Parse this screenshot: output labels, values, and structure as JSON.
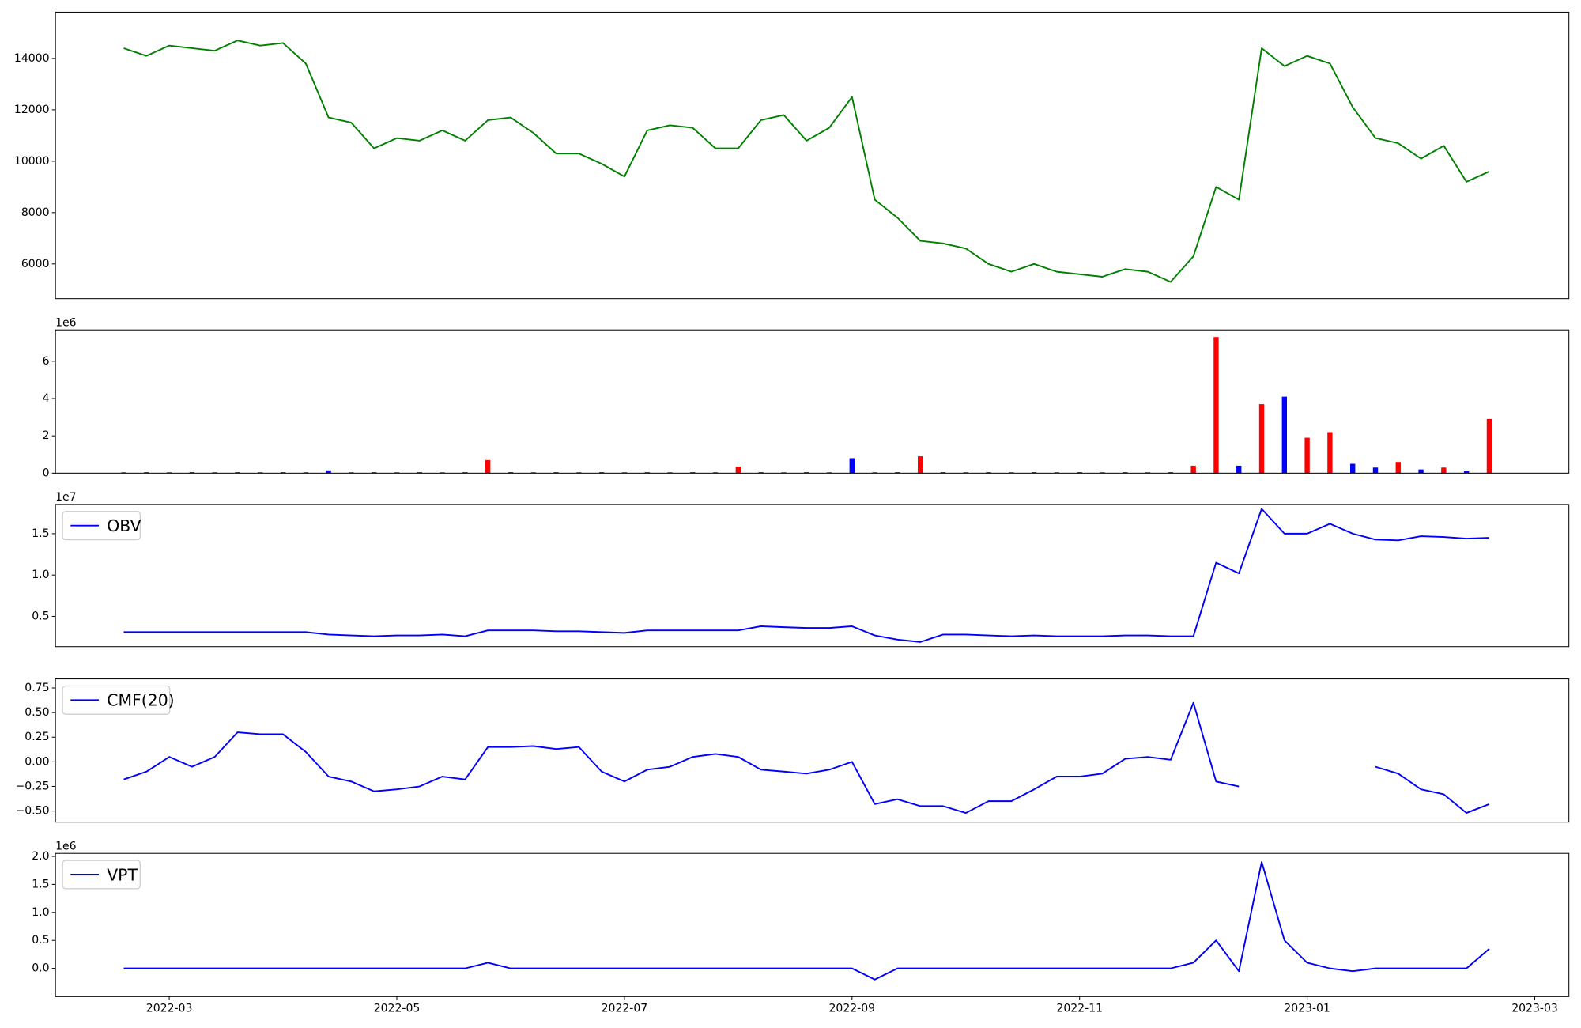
{
  "chart_data": [
    {
      "type": "line",
      "color": "green",
      "x": [
        2.6,
        2.8,
        3.0,
        3.2,
        3.4,
        3.6,
        3.8,
        4.0,
        4.2,
        4.4,
        4.6,
        4.8,
        5.0,
        5.2,
        5.4,
        5.6,
        5.8,
        6.0,
        6.2,
        6.4,
        6.6,
        6.8,
        7.0,
        7.2,
        7.4,
        7.6,
        7.8,
        8.0,
        8.2,
        8.4,
        8.6,
        8.8,
        9.0,
        9.2,
        9.4,
        9.6,
        9.8,
        10.0,
        10.2,
        10.4,
        10.6,
        10.8,
        11.0,
        11.2,
        11.4,
        11.6,
        11.8,
        12.0,
        12.2,
        12.4,
        12.6,
        12.8,
        13.0,
        13.2,
        13.4,
        13.6,
        13.8,
        14.0,
        14.2,
        14.4,
        14.6
      ],
      "values": [
        14400,
        14100,
        14500,
        14400,
        14300,
        14700,
        14500,
        14600,
        13800,
        11700,
        11500,
        10500,
        10900,
        10800,
        11200,
        10800,
        11600,
        11700,
        11100,
        10300,
        10300,
        9900,
        9400,
        11200,
        11400,
        11300,
        10500,
        10500,
        11600,
        11800,
        10800,
        11300,
        12500,
        8500,
        7800,
        6900,
        6800,
        6600,
        6000,
        5700,
        6000,
        5700,
        5600,
        5500,
        5800,
        5700,
        5300,
        6300,
        9000,
        8500,
        14400,
        13700,
        14100,
        13800,
        12100,
        10900,
        10700,
        10100,
        10600,
        9200,
        9600
      ],
      "xlim": [
        2.0,
        15.3
      ],
      "ylim": [
        4650,
        15800
      ],
      "yticks": [
        6000,
        8000,
        10000,
        12000,
        14000
      ]
    },
    {
      "type": "bar",
      "offset_label": "1e6",
      "x": [
        2.6,
        2.8,
        3.0,
        3.2,
        3.4,
        3.6,
        3.8,
        4.0,
        4.2,
        4.4,
        4.6,
        4.8,
        5.0,
        5.2,
        5.4,
        5.6,
        5.8,
        6.0,
        6.2,
        6.4,
        6.6,
        6.8,
        7.0,
        7.2,
        7.4,
        7.6,
        7.8,
        8.0,
        8.2,
        8.4,
        8.6,
        8.8,
        9.0,
        9.2,
        9.4,
        9.6,
        9.8,
        10.0,
        10.2,
        10.4,
        10.6,
        10.8,
        11.0,
        11.2,
        11.4,
        11.6,
        11.8,
        12.0,
        12.2,
        12.4,
        12.6,
        12.8,
        13.0,
        13.2,
        13.4,
        13.6,
        13.8,
        14.0,
        14.2,
        14.4,
        14.6
      ],
      "values": [
        0.05,
        0.05,
        0.05,
        0.05,
        0.05,
        0.05,
        0.05,
        0.05,
        0.05,
        0.15,
        0.05,
        0.05,
        0.05,
        0.05,
        0.05,
        0.05,
        0.7,
        0.05,
        0.05,
        0.05,
        0.05,
        0.05,
        0.05,
        0.05,
        0.05,
        0.05,
        0.05,
        0.35,
        0.05,
        0.05,
        0.05,
        0.05,
        0.8,
        0.05,
        0.05,
        0.9,
        0.05,
        0.05,
        0.05,
        0.05,
        0.05,
        0.05,
        0.05,
        0.05,
        0.05,
        0.05,
        0.05,
        0.4,
        7.3,
        0.4,
        3.7,
        4.1,
        1.9,
        2.2,
        0.5,
        0.3,
        0.6,
        0.2,
        0.3,
        0.1,
        2.9
      ],
      "colors": [
        "red",
        "blue",
        "red",
        "blue",
        "red",
        "blue",
        "red",
        "blue",
        "red",
        "blue",
        "red",
        "blue",
        "red",
        "blue",
        "red",
        "blue",
        "red",
        "blue",
        "red",
        "blue",
        "red",
        "blue",
        "red",
        "blue",
        "red",
        "blue",
        "red",
        "red",
        "blue",
        "red",
        "blue",
        "red",
        "blue",
        "red",
        "blue",
        "red",
        "blue",
        "red",
        "blue",
        "red",
        "blue",
        "red",
        "blue",
        "red",
        "blue",
        "red",
        "blue",
        "red",
        "red",
        "blue",
        "red",
        "blue",
        "red",
        "red",
        "blue",
        "blue",
        "red",
        "blue",
        "red",
        "blue",
        "red"
      ],
      "xlim": [
        2.0,
        15.3
      ],
      "ylim": [
        0,
        7.68
      ],
      "yticks": [
        0,
        2,
        4,
        6
      ]
    },
    {
      "type": "line",
      "color": "blue",
      "offset_label": "1e7",
      "legend": "upper left",
      "series": [
        {
          "name": "OBV",
          "color": "blue",
          "values": [
            0.31,
            0.31,
            0.31,
            0.31,
            0.31,
            0.31,
            0.31,
            0.31,
            0.31,
            0.28,
            0.27,
            0.26,
            0.27,
            0.27,
            0.28,
            0.26,
            0.33,
            0.33,
            0.33,
            0.32,
            0.32,
            0.31,
            0.3,
            0.33,
            0.33,
            0.33,
            0.33,
            0.33,
            0.38,
            0.37,
            0.36,
            0.36,
            0.38,
            0.27,
            0.22,
            0.19,
            0.28,
            0.28,
            0.27,
            0.26,
            0.27,
            0.26,
            0.26,
            0.26,
            0.27,
            0.27,
            0.26,
            0.26,
            1.15,
            1.02,
            1.8,
            1.5,
            1.5,
            1.62,
            1.5,
            1.43,
            1.42,
            1.47,
            1.46,
            1.44,
            1.45
          ]
        }
      ],
      "x": [
        2.6,
        2.8,
        3.0,
        3.2,
        3.4,
        3.6,
        3.8,
        4.0,
        4.2,
        4.4,
        4.6,
        4.8,
        5.0,
        5.2,
        5.4,
        5.6,
        5.8,
        6.0,
        6.2,
        6.4,
        6.6,
        6.8,
        7.0,
        7.2,
        7.4,
        7.6,
        7.8,
        8.0,
        8.2,
        8.4,
        8.6,
        8.8,
        9.0,
        9.2,
        9.4,
        9.6,
        9.8,
        10.0,
        10.2,
        10.4,
        10.6,
        10.8,
        11.0,
        11.2,
        11.4,
        11.6,
        11.8,
        12.0,
        12.2,
        12.4,
        12.6,
        12.8,
        13.0,
        13.2,
        13.4,
        13.6,
        13.8,
        14.0,
        14.2,
        14.4,
        14.6
      ],
      "xlim": [
        2.0,
        15.3
      ],
      "ylim": [
        0.134,
        1.854
      ],
      "yticks": [
        0.5,
        {
          "value": 1,
          "label": "1.0"
        },
        1.5
      ]
    },
    {
      "type": "line",
      "legend": "upper left",
      "series": [
        {
          "name": "CMF(20)",
          "color": "blue",
          "values": [
            -0.18,
            -0.1,
            0.05,
            -0.05,
            0.05,
            0.3,
            0.28,
            0.28,
            0.1,
            -0.15,
            -0.2,
            -0.3,
            -0.28,
            -0.25,
            -0.15,
            -0.18,
            0.15,
            0.15,
            0.16,
            0.13,
            0.15,
            -0.1,
            -0.2,
            -0.08,
            -0.05,
            0.05,
            0.08,
            0.05,
            -0.08,
            -0.1,
            -0.12,
            -0.08,
            0.0,
            -0.43,
            -0.38,
            -0.45,
            -0.45,
            -0.52,
            -0.4,
            -0.4,
            -0.28,
            -0.15,
            -0.15,
            -0.12,
            0.03,
            0.05,
            0.02,
            0.6,
            -0.2,
            -0.25,
            null,
            null,
            null,
            null,
            null,
            -0.05,
            -0.12,
            -0.28,
            -0.33,
            -0.52,
            -0.43
          ]
        }
      ],
      "x": [
        2.6,
        2.8,
        3.0,
        3.2,
        3.4,
        3.6,
        3.8,
        4.0,
        4.2,
        4.4,
        4.6,
        4.8,
        5.0,
        5.2,
        5.4,
        5.6,
        5.8,
        6.0,
        6.2,
        6.4,
        6.6,
        6.8,
        7.0,
        7.2,
        7.4,
        7.6,
        7.8,
        8.0,
        8.2,
        8.4,
        8.6,
        8.8,
        9.0,
        9.2,
        9.4,
        9.6,
        9.8,
        10.0,
        10.2,
        10.4,
        10.6,
        10.8,
        11.0,
        11.2,
        11.4,
        11.6,
        11.8,
        12.0,
        12.2,
        12.4,
        12.6,
        12.8,
        13.0,
        13.2,
        13.4,
        13.6,
        13.8,
        14.0,
        14.2,
        14.4,
        14.6
      ],
      "xlim": [
        2.0,
        15.3
      ],
      "ylim": [
        -0.613,
        0.842
      ],
      "yticks": [
        {
          "value": -0.5,
          "label": "−0.50"
        },
        {
          "value": -0.25,
          "label": "−0.25"
        },
        {
          "value": 0,
          "label": "0.00"
        },
        0.25,
        {
          "value": 0.5,
          "label": "0.50"
        },
        0.75
      ]
    },
    {
      "type": "line",
      "offset_label": "1e6",
      "legend": "upper left",
      "series": [
        {
          "name": "VPT",
          "color": "blue",
          "values": [
            0,
            0,
            0,
            0,
            0,
            0,
            0,
            0,
            0,
            0,
            0,
            0,
            0,
            0,
            0,
            0,
            0.1,
            0,
            0,
            0,
            0,
            0,
            0,
            0,
            0,
            0,
            0,
            0,
            0,
            0,
            0,
            0,
            0,
            -0.2,
            0,
            0,
            0,
            0,
            0,
            0,
            0,
            0,
            0,
            0,
            0,
            0,
            0,
            0.1,
            0.5,
            -0.05,
            1.9,
            0.5,
            0.1,
            0,
            -0.05,
            0,
            0,
            0,
            0,
            0,
            0.35
          ]
        }
      ],
      "x": [
        2.6,
        2.8,
        3.0,
        3.2,
        3.4,
        3.6,
        3.8,
        4.0,
        4.2,
        4.4,
        4.6,
        4.8,
        5.0,
        5.2,
        5.4,
        5.6,
        5.8,
        6.0,
        6.2,
        6.4,
        6.6,
        6.8,
        7.0,
        7.2,
        7.4,
        7.6,
        7.8,
        8.0,
        8.2,
        8.4,
        8.6,
        8.8,
        9.0,
        9.2,
        9.4,
        9.6,
        9.8,
        10.0,
        10.2,
        10.4,
        10.6,
        10.8,
        11.0,
        11.2,
        11.4,
        11.6,
        11.8,
        12.0,
        12.2,
        12.4,
        12.6,
        12.8,
        13.0,
        13.2,
        13.4,
        13.6,
        13.8,
        14.0,
        14.2,
        14.4,
        14.6
      ],
      "xlim": [
        2.0,
        15.3
      ],
      "ylim": [
        -0.505,
        2.054
      ],
      "yticks": [
        {
          "value": 0,
          "label": "0.0"
        },
        0.5,
        {
          "value": 1,
          "label": "1.0"
        },
        1.5,
        {
          "value": 2,
          "label": "2.0"
        }
      ],
      "xticks": [
        {
          "value": 3,
          "label": "2022-03"
        },
        {
          "value": 5,
          "label": "2022-05"
        },
        {
          "value": 7,
          "label": "2022-07"
        },
        {
          "value": 9,
          "label": "2022-09"
        },
        {
          "value": 11,
          "label": "2022-11"
        },
        {
          "value": 13,
          "label": "2023-01"
        },
        {
          "value": 15,
          "label": "2023-03"
        }
      ]
    }
  ]
}
